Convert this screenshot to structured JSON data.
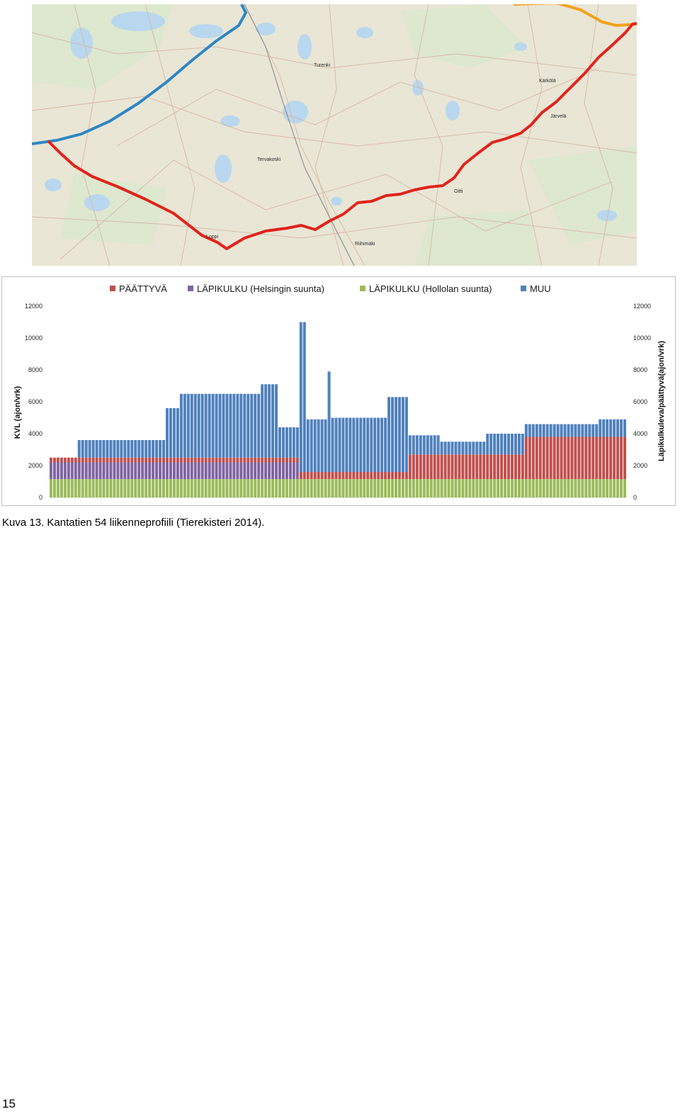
{
  "map": {
    "places": [
      "Turenki",
      "Tervakoski",
      "Loppi",
      "Riihimäki",
      "Oitti",
      "Kärkölä",
      "Järvelä"
    ],
    "colors": {
      "route_studied": "#e2231a",
      "other_main_road": "#2f86c4",
      "connecting_road": "#f3a21a",
      "map_background": "#e9e6d6",
      "water": "#b9d7ee",
      "forest": "#dde8cf",
      "roads": "#d9b7a3"
    }
  },
  "chart_data": {
    "type": "bar",
    "stacked": true,
    "legend_position": "top",
    "ylabel": "KVL (ajon/vrk)",
    "ylabel_right": "Läpikulkuleva/päättyvä(ajon/vrk)",
    "ylim": [
      0,
      12000
    ],
    "y_ticks": [
      "0",
      "2000",
      "4000",
      "6000",
      "8000",
      "10000",
      "12000"
    ],
    "legend": [
      {
        "name": "PÄÄTTYVÄ",
        "color": "#c0504d"
      },
      {
        "name": "LÄPIKULKU (Helsingin suunta)",
        "color": "#8064a2"
      },
      {
        "name": "LÄPIKULKU (Hollolan suunta)",
        "color": "#9bbb59"
      },
      {
        "name": "MUU",
        "color": "#4f81bd"
      }
    ],
    "segments": [
      {
        "length": 8,
        "paattyva": 300,
        "helsinki": 1050,
        "hollola": 1150,
        "muu": 0
      },
      {
        "length": 25,
        "paattyva": 300,
        "helsinki": 1050,
        "hollola": 1150,
        "muu": 1100
      },
      {
        "length": 4,
        "paattyva": 300,
        "helsinki": 1050,
        "hollola": 1150,
        "muu": 3100
      },
      {
        "length": 23,
        "paattyva": 300,
        "helsinki": 1050,
        "hollola": 1150,
        "muu": 4000
      },
      {
        "length": 5,
        "paattyva": 300,
        "helsinki": 1050,
        "hollola": 1150,
        "muu": 4600
      },
      {
        "length": 6,
        "paattyva": 300,
        "helsinki": 1050,
        "hollola": 1150,
        "muu": 1900
      },
      {
        "length": 2,
        "paattyva": 450,
        "helsinki": 0,
        "hollola": 1150,
        "muu": 9400
      },
      {
        "length": 6,
        "paattyva": 450,
        "helsinki": 0,
        "hollola": 1150,
        "muu": 3300
      },
      {
        "length": 1,
        "paattyva": 450,
        "helsinki": 0,
        "hollola": 1150,
        "muu": 6300
      },
      {
        "length": 16,
        "paattyva": 450,
        "helsinki": 0,
        "hollola": 1150,
        "muu": 3400
      },
      {
        "length": 6,
        "paattyva": 450,
        "helsinki": 0,
        "hollola": 1150,
        "muu": 4700
      },
      {
        "length": 9,
        "paattyva": 1550,
        "helsinki": 0,
        "hollola": 1150,
        "muu": 1200
      },
      {
        "length": 13,
        "paattyva": 1550,
        "helsinki": 0,
        "hollola": 1150,
        "muu": 800
      },
      {
        "length": 11,
        "paattyva": 1550,
        "helsinki": 0,
        "hollola": 1150,
        "muu": 1300
      },
      {
        "length": 21,
        "paattyva": 2650,
        "helsinki": 0,
        "hollola": 1150,
        "muu": 800
      },
      {
        "length": 8,
        "paattyva": 2650,
        "helsinki": 0,
        "hollola": 1150,
        "muu": 1100
      }
    ]
  },
  "caption": "Kuva 13. Kantatien 54 liikenneprofiili (Tierekisteri 2014).",
  "page_number": "15"
}
